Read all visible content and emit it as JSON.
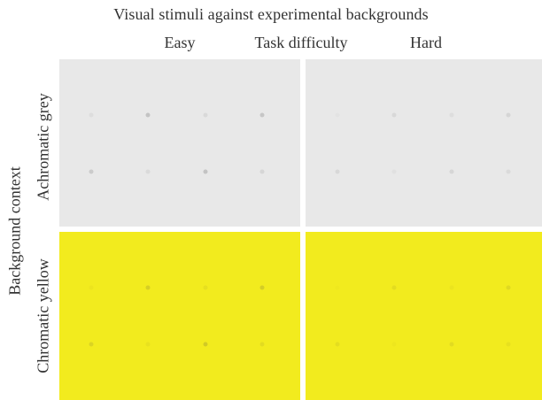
{
  "title": "Visual stimuli against experimental backgrounds",
  "column_labels": {
    "left": "Easy",
    "middle": "Task difficulty",
    "right": "Hard"
  },
  "row_labels": {
    "outer": "Background context",
    "top": "Achromatic grey",
    "bottom": "Chromatic yellow"
  },
  "colors": {
    "grey_background": "#e8e8e8",
    "yellow_background": "#f2eb1e"
  },
  "panels": [
    {
      "row": "Achromatic grey",
      "difficulty": "Easy",
      "bg": "#e8e8e8",
      "stimuli": [
        {
          "row": 0,
          "col": 0,
          "color": "#dddddd"
        },
        {
          "row": 0,
          "col": 1,
          "color": "#c3c3c3"
        },
        {
          "row": 0,
          "col": 2,
          "color": "#d9d9d9"
        },
        {
          "row": 0,
          "col": 3,
          "color": "#c6c6c6"
        },
        {
          "row": 1,
          "col": 0,
          "color": "#cbcbcb"
        },
        {
          "row": 1,
          "col": 1,
          "color": "#dadada"
        },
        {
          "row": 1,
          "col": 2,
          "color": "#c3c3c3"
        },
        {
          "row": 1,
          "col": 3,
          "color": "#d6d6d6"
        }
      ]
    },
    {
      "row": "Achromatic grey",
      "difficulty": "Hard",
      "bg": "#e8e8e8",
      "stimuli": [
        {
          "row": 0,
          "col": 0,
          "color": "#e3e3e3"
        },
        {
          "row": 0,
          "col": 1,
          "color": "#d8d8d8"
        },
        {
          "row": 0,
          "col": 2,
          "color": "#dddddd"
        },
        {
          "row": 0,
          "col": 3,
          "color": "#d5d5d5"
        },
        {
          "row": 1,
          "col": 0,
          "color": "#d8d8d8"
        },
        {
          "row": 1,
          "col": 1,
          "color": "#e0e0e0"
        },
        {
          "row": 1,
          "col": 2,
          "color": "#d6d6d6"
        },
        {
          "row": 1,
          "col": 3,
          "color": "#dadada"
        }
      ]
    },
    {
      "row": "Chromatic yellow",
      "difficulty": "Easy",
      "bg": "#f2eb1e",
      "stimuli": [
        {
          "row": 0,
          "col": 0,
          "color": "#ece41e"
        },
        {
          "row": 0,
          "col": 1,
          "color": "#d6cf24"
        },
        {
          "row": 0,
          "col": 2,
          "color": "#e6df20"
        },
        {
          "row": 0,
          "col": 3,
          "color": "#d4cd26"
        },
        {
          "row": 1,
          "col": 0,
          "color": "#dbd423"
        },
        {
          "row": 1,
          "col": 1,
          "color": "#e8e11f"
        },
        {
          "row": 1,
          "col": 2,
          "color": "#d1ca26"
        },
        {
          "row": 1,
          "col": 3,
          "color": "#e2db21"
        }
      ]
    },
    {
      "row": "Chromatic yellow",
      "difficulty": "Hard",
      "bg": "#f2eb1e",
      "stimuli": [
        {
          "row": 0,
          "col": 0,
          "color": "#efe81e"
        },
        {
          "row": 0,
          "col": 1,
          "color": "#e3dc20"
        },
        {
          "row": 0,
          "col": 2,
          "color": "#ebe41f"
        },
        {
          "row": 0,
          "col": 3,
          "color": "#e0d921"
        },
        {
          "row": 1,
          "col": 0,
          "color": "#e4dd20"
        },
        {
          "row": 1,
          "col": 1,
          "color": "#ede61e"
        },
        {
          "row": 1,
          "col": 2,
          "color": "#e2db21"
        },
        {
          "row": 1,
          "col": 3,
          "color": "#e7e01f"
        }
      ]
    }
  ]
}
